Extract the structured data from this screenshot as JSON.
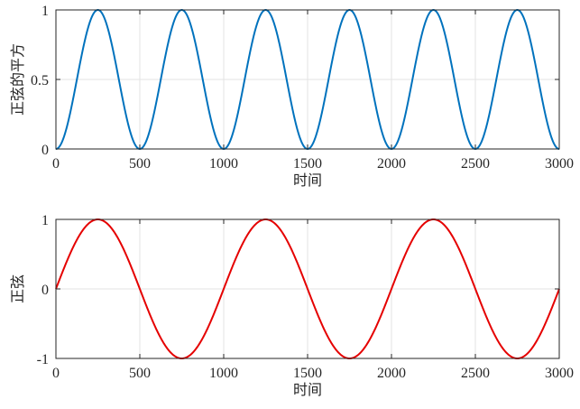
{
  "chart_data": [
    {
      "type": "line",
      "xlabel": "时间",
      "ylabel": "正弦的平方",
      "xlim": [
        0,
        3000
      ],
      "ylim": [
        0,
        1
      ],
      "x_ticks": [
        0,
        500,
        1000,
        1500,
        2000,
        2500,
        3000
      ],
      "x_tick_labels": [
        "0",
        "500",
        "1000",
        "1500",
        "2000",
        "2500",
        "3000"
      ],
      "y_ticks": [
        0,
        0.5,
        1
      ],
      "y_tick_labels": [
        "0",
        "0.5",
        "1"
      ],
      "grid": true,
      "series": [
        {
          "function": "sin(2*pi*t/1000)^2",
          "x": [
            0,
            125,
            250,
            375,
            500,
            625,
            750,
            875,
            1000,
            1125,
            1250,
            1375,
            1500,
            1625,
            1750,
            1875,
            2000,
            2125,
            2250,
            2375,
            2500,
            2625,
            2750,
            2875,
            3000
          ],
          "y": [
            0,
            0.5,
            1,
            0.5,
            0,
            0.5,
            1,
            0.5,
            0,
            0.5,
            1,
            0.5,
            0,
            0.5,
            1,
            0.5,
            0,
            0.5,
            1,
            0.5,
            0,
            0.5,
            1,
            0.5,
            0
          ],
          "color": "#0072BD"
        }
      ]
    },
    {
      "type": "line",
      "xlabel": "时间",
      "ylabel": "正弦",
      "xlim": [
        0,
        3000
      ],
      "ylim": [
        -1,
        1
      ],
      "x_ticks": [
        0,
        500,
        1000,
        1500,
        2000,
        2500,
        3000
      ],
      "x_tick_labels": [
        "0",
        "500",
        "1000",
        "1500",
        "2000",
        "2500",
        "3000"
      ],
      "y_ticks": [
        -1,
        0,
        1
      ],
      "y_tick_labels": [
        "-1",
        "0",
        "1"
      ],
      "grid": true,
      "series": [
        {
          "function": "sin(2*pi*t/1000)",
          "x": [
            0,
            125,
            250,
            375,
            500,
            625,
            750,
            875,
            1000,
            1125,
            1250,
            1375,
            1500,
            1625,
            1750,
            1875,
            2000,
            2125,
            2250,
            2375,
            2500,
            2625,
            2750,
            2875,
            3000
          ],
          "y": [
            0,
            0.707,
            1,
            0.707,
            0,
            -0.707,
            -1,
            -0.707,
            0,
            0.707,
            1,
            0.707,
            0,
            -0.707,
            -1,
            -0.707,
            0,
            0.707,
            1,
            0.707,
            0,
            -0.707,
            -1,
            -0.707,
            0
          ],
          "color": "#E50000"
        }
      ]
    }
  ]
}
